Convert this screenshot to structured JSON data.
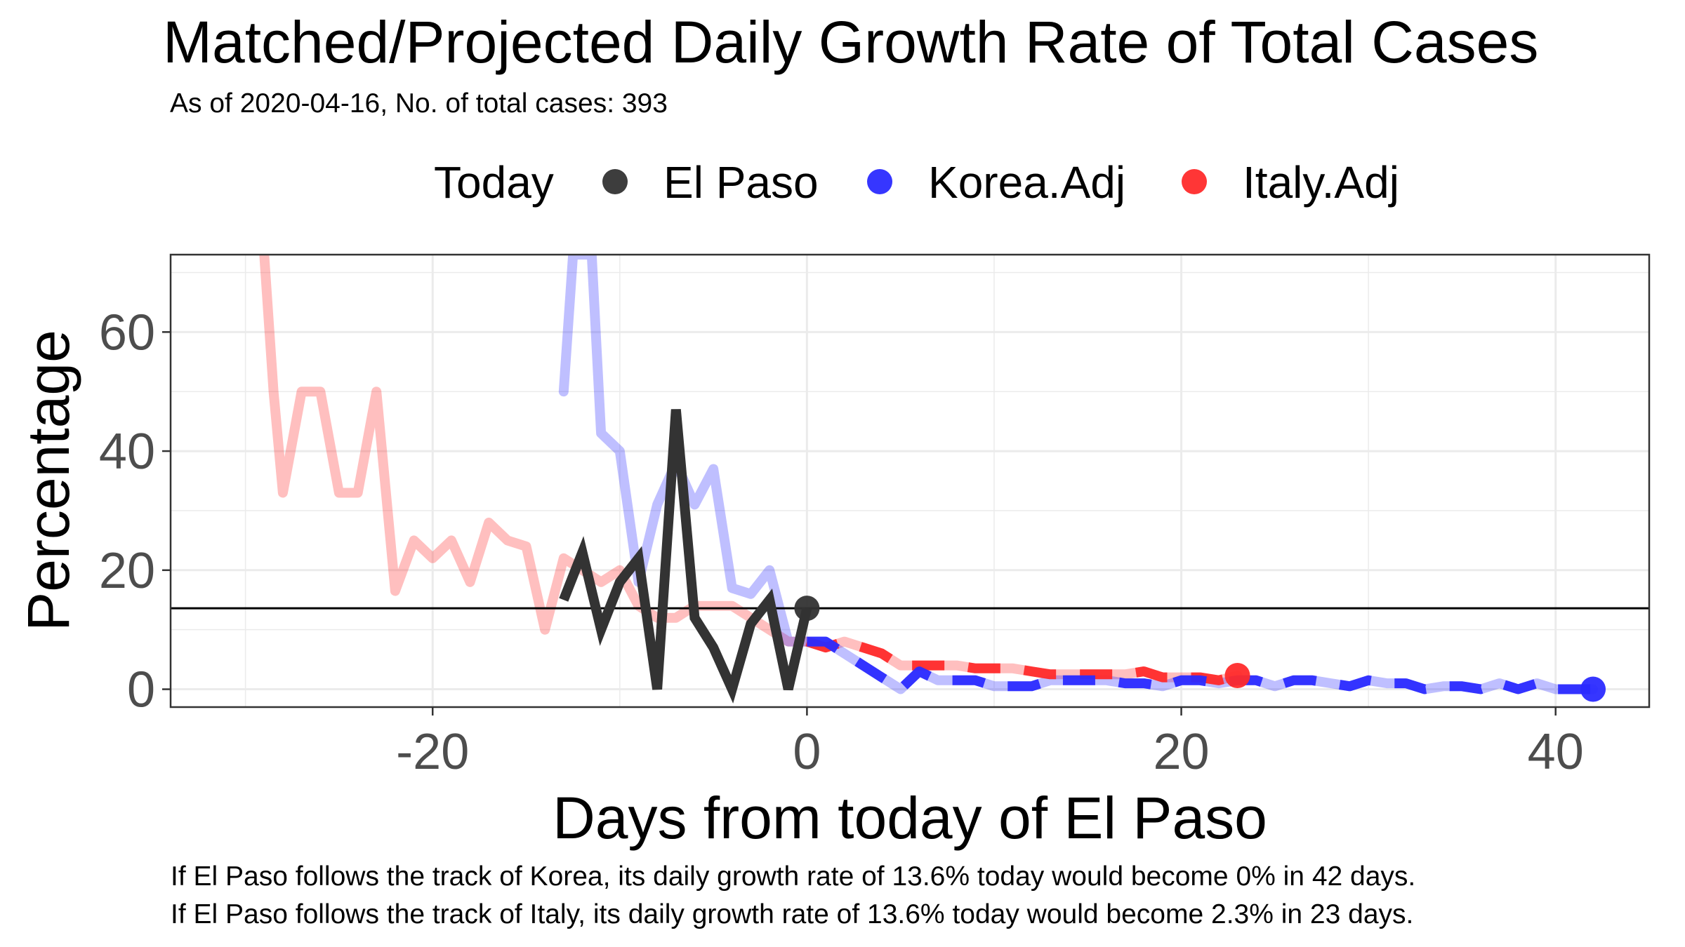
{
  "chart_data": {
    "type": "line",
    "title": "Matched/Projected Daily Growth Rate of Total Cases",
    "subtitle": "As of 2020-04-16, No. of total cases: 393",
    "xlabel": "Days from today of El Paso",
    "ylabel": "Percentage",
    "xlim": [
      -34,
      45
    ],
    "ylim": [
      -3,
      73
    ],
    "x_ticks": [
      -20,
      0,
      20,
      40
    ],
    "y_ticks": [
      0,
      20,
      40,
      60
    ],
    "grid": true,
    "legend_title": "Today",
    "legend_position": "top",
    "reference_line": 13.6,
    "series": [
      {
        "name": "El Paso",
        "color": "#333333",
        "x": [
          -13,
          -12,
          -11,
          -10,
          -9,
          -8,
          -7,
          -6,
          -5,
          -4,
          -3,
          -2,
          -1,
          0
        ],
        "y": [
          15,
          23,
          10,
          18,
          22,
          0,
          47,
          12,
          7,
          0,
          11,
          15,
          0,
          13.6
        ]
      },
      {
        "name": "Korea.Adj",
        "color": "#2b2bff",
        "x": [
          -13,
          -12.5,
          -12,
          -11.5,
          -11,
          -10,
          -9,
          -8,
          -7,
          -6,
          -5,
          -4,
          -3,
          -2,
          -1,
          0,
          1,
          2,
          3,
          4,
          5,
          6,
          7,
          8,
          9,
          10,
          11,
          12,
          13,
          14,
          15,
          16,
          17,
          18,
          19,
          20,
          21,
          22,
          23,
          24,
          25,
          26,
          27,
          28,
          29,
          30,
          31,
          32,
          33,
          34,
          35,
          36,
          37,
          38,
          39,
          40,
          41,
          42
        ],
        "y": [
          50,
          73,
          73,
          73,
          43,
          40,
          18,
          31,
          38,
          31,
          37,
          17,
          16,
          20,
          8,
          8,
          8,
          6,
          4,
          2,
          0,
          3,
          1.5,
          1.5,
          1.5,
          0.5,
          0.5,
          0.5,
          1.5,
          1.5,
          1.5,
          1.5,
          1,
          1,
          0.5,
          1.5,
          1.5,
          1,
          1.5,
          1.5,
          0.5,
          1.5,
          1.5,
          1,
          0.5,
          1.5,
          1,
          1,
          0,
          0.5,
          0.5,
          0,
          1,
          0,
          1,
          0,
          0,
          0
        ]
      },
      {
        "name": "Italy.Adj",
        "color": "#ff2b2b",
        "x": [
          -29,
          -28.5,
          -28,
          -27,
          -26,
          -25,
          -24,
          -23,
          -22,
          -21,
          -20,
          -19,
          -18,
          -17,
          -16,
          -15,
          -14,
          -13,
          -12,
          -11,
          -10,
          -9,
          -8,
          -7,
          -6,
          -5,
          -4,
          -3,
          -2,
          -1,
          0,
          1,
          2,
          3,
          4,
          5,
          6,
          7,
          8,
          9,
          10,
          11,
          12,
          13,
          14,
          15,
          16,
          17,
          18,
          19,
          20,
          21,
          22,
          23
        ],
        "y": [
          73,
          50,
          33,
          50,
          50,
          33,
          33,
          50,
          16.5,
          25,
          22,
          25,
          18,
          28,
          25,
          24,
          10,
          22,
          20,
          18,
          20,
          14,
          12,
          12,
          14,
          14,
          14,
          12,
          10,
          8,
          8,
          7,
          8,
          7,
          6,
          4,
          4,
          4,
          4,
          3.5,
          3.5,
          3.5,
          3,
          2.5,
          2.5,
          2.5,
          2.5,
          2.5,
          3,
          2,
          2,
          2,
          1.5,
          2.3
        ]
      }
    ],
    "captions": [
      "If El Paso follows the track of Korea, its daily growth rate of 13.6% today would become 0% in 42 days.",
      "If El Paso follows the track of Italy, its daily growth rate of 13.6% today would become 2.3% in 23 days."
    ]
  }
}
